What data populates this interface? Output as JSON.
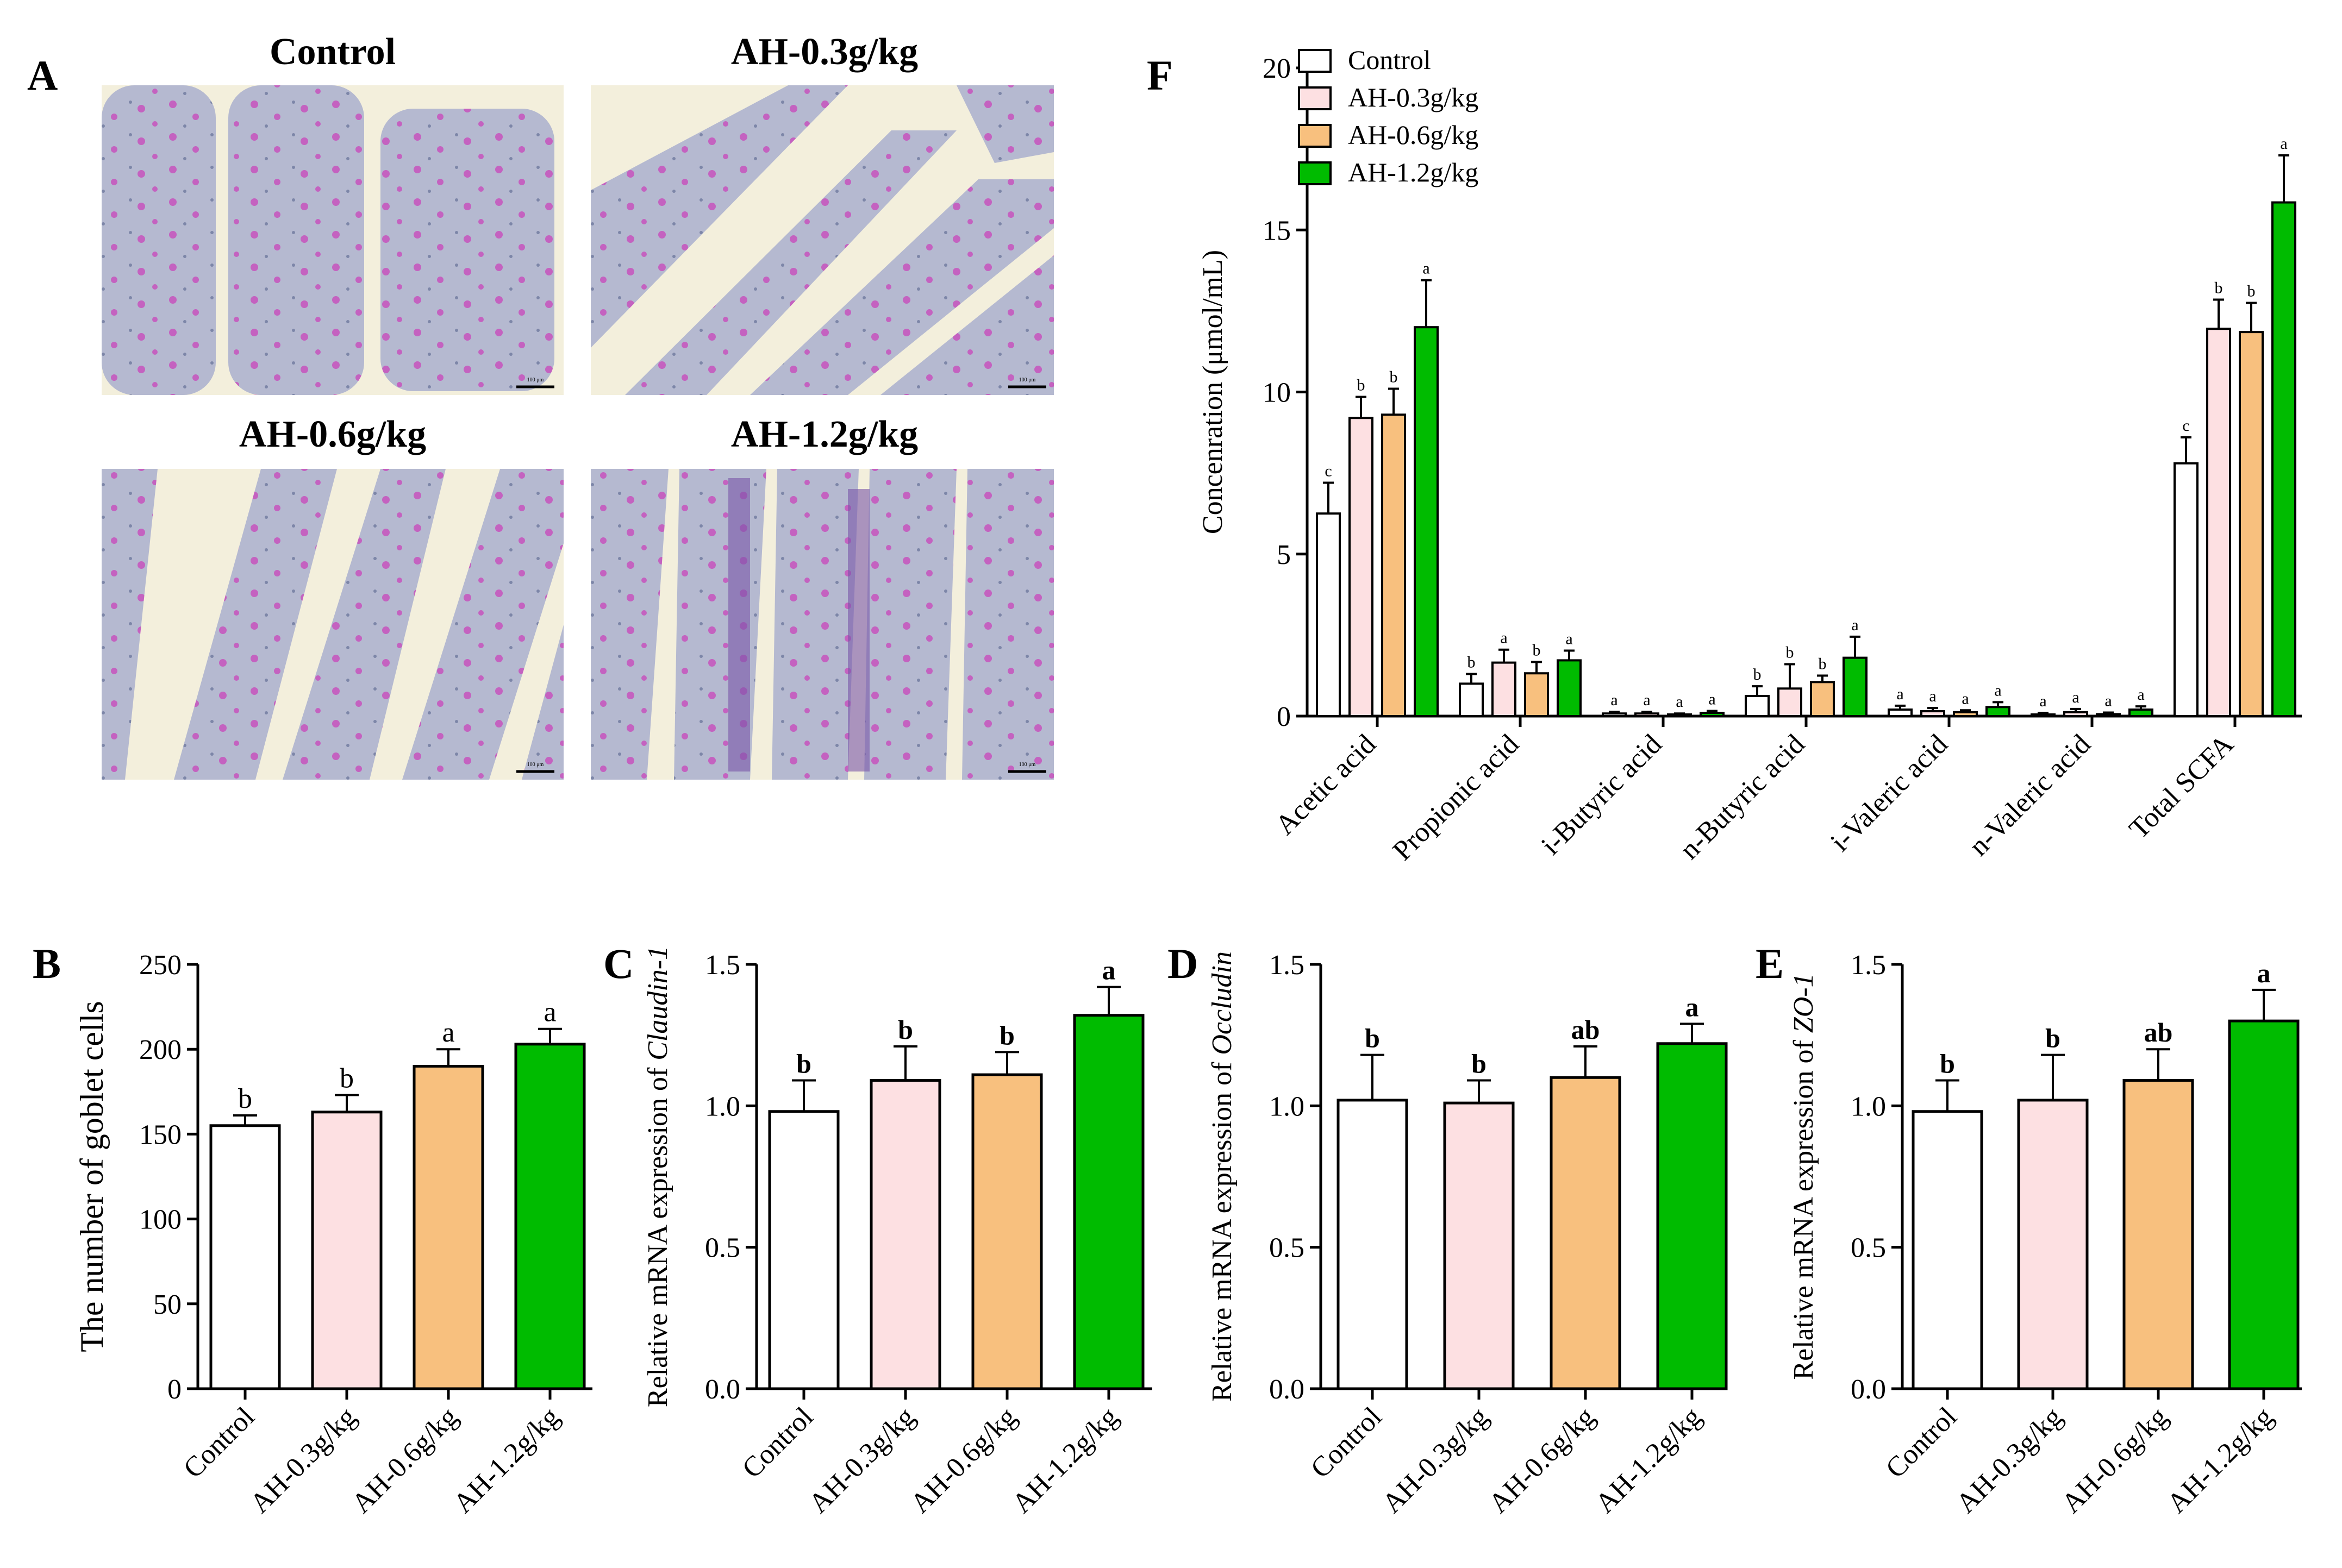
{
  "colors": {
    "Control": "#ffffff",
    "AH-0.3g/kg": "#fde0e2",
    "AH-0.6g/kg": "#f8c07e",
    "AH-1.2g/kg": "#00bb00",
    "micro_background": "#f3efdc",
    "micro_tissue": "#b5b9d0",
    "micro_goblet": "#c462c0"
  },
  "panel_letters": {
    "A": "A",
    "B": "B",
    "C": "C",
    "D": "D",
    "E": "E",
    "F": "F"
  },
  "micrographs": [
    {
      "title": "Control",
      "scale_label": "100 μm"
    },
    {
      "title": "AH-0.3g/kg",
      "scale_label": "100 μm"
    },
    {
      "title": "AH-0.6g/kg",
      "scale_label": "100 μm"
    },
    {
      "title": "AH-1.2g/kg",
      "scale_label": "100 μm"
    }
  ],
  "chart_data": [
    {
      "id": "F",
      "type": "bar",
      "categories": [
        "Acetic acid",
        "Propionic acid",
        "i-Butyric acid",
        "n-Butyric acid",
        "i-Valeric acid",
        "n-Valeric acid",
        "Total SCFA"
      ],
      "series": [
        {
          "name": "Control",
          "values": [
            6.25,
            1.0,
            0.08,
            0.62,
            0.2,
            0.05,
            7.8
          ],
          "errors": [
            0.95,
            0.3,
            0.05,
            0.3,
            0.12,
            0.05,
            0.8
          ],
          "letters": [
            "c",
            "b",
            "a",
            "b",
            "a",
            "a",
            "c"
          ]
        },
        {
          "name": "AH-0.3g/kg",
          "values": [
            9.2,
            1.65,
            0.08,
            0.85,
            0.15,
            0.12,
            11.95
          ],
          "errors": [
            0.65,
            0.4,
            0.05,
            0.75,
            0.1,
            0.1,
            0.9
          ],
          "letters": [
            "b",
            "a",
            "a",
            "b",
            "a",
            "a",
            "b"
          ]
        },
        {
          "name": "AH-0.6g/kg",
          "values": [
            9.3,
            1.32,
            0.05,
            1.05,
            0.12,
            0.06,
            11.85
          ],
          "errors": [
            0.8,
            0.35,
            0.03,
            0.2,
            0.06,
            0.05,
            0.9
          ],
          "letters": [
            "b",
            "b",
            "a",
            "b",
            "a",
            "a",
            "b"
          ]
        },
        {
          "name": "AH-1.2g/kg",
          "values": [
            12.0,
            1.72,
            0.1,
            1.8,
            0.28,
            0.2,
            15.85
          ],
          "errors": [
            1.45,
            0.3,
            0.06,
            0.65,
            0.15,
            0.1,
            1.45
          ],
          "letters": [
            "a",
            "a",
            "a",
            "a",
            "a",
            "a",
            "a"
          ]
        }
      ],
      "ylabel": "Concenration (μmol/mL)",
      "ylim": [
        0,
        20
      ],
      "yticks": [
        0,
        5,
        10,
        15,
        20
      ],
      "legend": [
        "Control",
        "AH-0.3g/kg",
        "AH-0.6g/kg",
        "AH-1.2g/kg"
      ],
      "legend_position": "top-left"
    },
    {
      "id": "B",
      "type": "bar",
      "categories": [
        "Control",
        "AH-0.3g/kg",
        "AH-0.6g/kg",
        "AH-1.2g/kg"
      ],
      "values": [
        155,
        163,
        190,
        203
      ],
      "errors": [
        6,
        10,
        10,
        9
      ],
      "letters": [
        "b",
        "b",
        "a",
        "a"
      ],
      "ylabel": "The number of goblet cells",
      "ylim": [
        0,
        250
      ],
      "yticks": [
        0,
        50,
        100,
        150,
        200,
        250
      ],
      "ytick_labels": [
        "0",
        "50",
        "100",
        "150",
        "200",
        "250"
      ]
    },
    {
      "id": "C",
      "type": "bar",
      "categories": [
        "Control",
        "AH-0.3g/kg",
        "AH-0.6g/kg",
        "AH-1.2g/kg"
      ],
      "values": [
        0.98,
        1.09,
        1.11,
        1.32
      ],
      "errors": [
        0.11,
        0.12,
        0.08,
        0.1
      ],
      "letters": [
        "b",
        "b",
        "b",
        "a"
      ],
      "ylabel_prefix": "Relative mRNA expression of ",
      "ylabel_gene": "Claudin-1",
      "ylim": [
        0,
        1.5
      ],
      "yticks": [
        0,
        0.5,
        1.0,
        1.5
      ],
      "ytick_labels": [
        "0.0",
        "0.5",
        "1.0",
        "1.5"
      ]
    },
    {
      "id": "D",
      "type": "bar",
      "categories": [
        "Control",
        "AH-0.3g/kg",
        "AH-0.6g/kg",
        "AH-1.2g/kg"
      ],
      "values": [
        1.02,
        1.01,
        1.1,
        1.22
      ],
      "errors": [
        0.16,
        0.08,
        0.11,
        0.07
      ],
      "letters": [
        "b",
        "b",
        "ab",
        "a"
      ],
      "ylabel_prefix": "Relative mRNA expression of ",
      "ylabel_gene": "Occludin",
      "ylim": [
        0,
        1.5
      ],
      "yticks": [
        0,
        0.5,
        1.0,
        1.5
      ],
      "ytick_labels": [
        "0.0",
        "0.5",
        "1.0",
        "1.5"
      ]
    },
    {
      "id": "E",
      "type": "bar",
      "categories": [
        "Control",
        "AH-0.3g/kg",
        "AH-0.6g/kg",
        "AH-1.2g/kg"
      ],
      "values": [
        0.98,
        1.02,
        1.09,
        1.3
      ],
      "errors": [
        0.11,
        0.16,
        0.11,
        0.11
      ],
      "letters": [
        "b",
        "b",
        "ab",
        "a"
      ],
      "ylabel_prefix": "Relative mRNA expression of ",
      "ylabel_gene": "ZO-1",
      "ylim": [
        0,
        1.5
      ],
      "yticks": [
        0,
        0.5,
        1.0,
        1.5
      ],
      "ytick_labels": [
        "0.0",
        "0.5",
        "1.0",
        "1.5"
      ]
    }
  ]
}
